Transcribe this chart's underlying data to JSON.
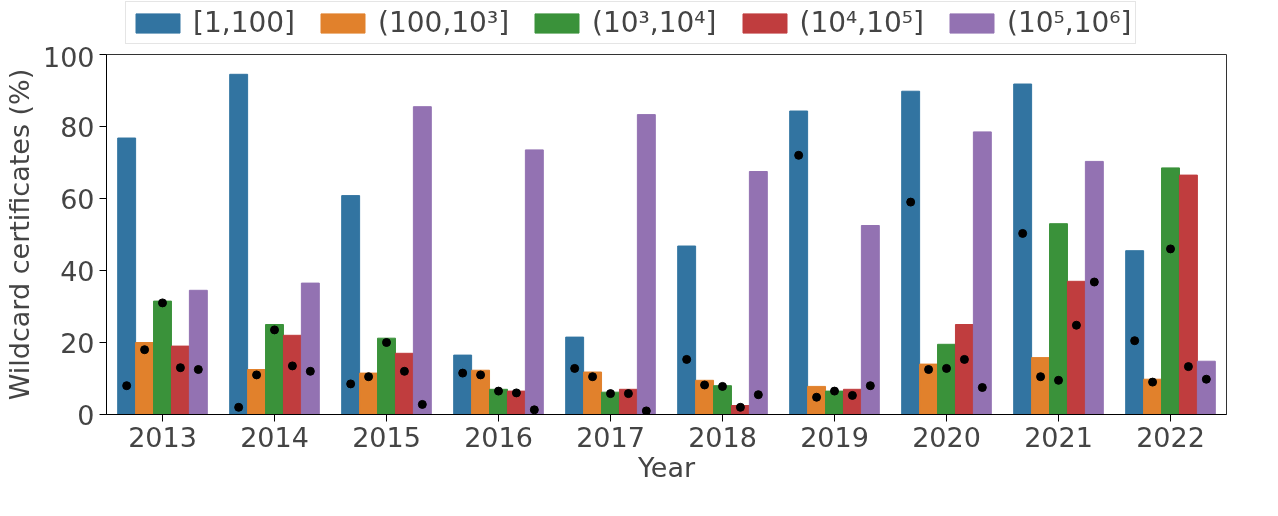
{
  "chart_data": {
    "type": "bar",
    "xlabel": "Year",
    "ylabel": "Wildcard certificates (%)",
    "categories": [
      "2013",
      "2014",
      "2015",
      "2016",
      "2017",
      "2018",
      "2019",
      "2020",
      "2021",
      "2022"
    ],
    "ylim": [
      0,
      100
    ],
    "yticks": [
      0,
      20,
      40,
      60,
      80,
      100
    ],
    "grid": false,
    "legend": "top",
    "series": [
      {
        "name": "[1,100]",
        "color": "#3274a1",
        "values": [
          76.8,
          94.5,
          60.8,
          16.5,
          21.5,
          46.8,
          84.3,
          89.8,
          91.8,
          45.5
        ]
      },
      {
        "name": "(100,10³]",
        "color": "#e1812c",
        "values": [
          20,
          12.5,
          11.5,
          12.3,
          11.8,
          9.5,
          7.8,
          14,
          15.8,
          9.8
        ]
      },
      {
        "name": "(10³,10⁴]",
        "color": "#3a923a",
        "values": [
          31.5,
          25,
          21.2,
          7,
          6.2,
          8,
          6.5,
          19.5,
          53,
          68.5
        ]
      },
      {
        "name": "(10⁴,10⁵]",
        "color": "#c03d3e",
        "values": [
          19,
          22,
          17,
          6.5,
          7,
          2.5,
          7,
          25,
          37,
          66.5
        ]
      },
      {
        "name": "(10⁵,10⁶]",
        "color": "#9372b2",
        "values": [
          34.5,
          36.5,
          85.5,
          73.5,
          83.3,
          67.5,
          52.5,
          78.5,
          70.3,
          14.8
        ]
      },
      {
        "type": "scatter",
        "marker": "circle",
        "color": "#000000",
        "values": [
          8,
          2,
          8.5,
          11.5,
          12.8,
          15.3,
          72,
          59,
          50.3,
          20.5
        ]
      },
      {
        "type": "scatter",
        "marker": "circle",
        "color": "#000000",
        "values": [
          18,
          11,
          10.5,
          11,
          10.5,
          8.2,
          4.8,
          12.5,
          10.5,
          9
        ]
      },
      {
        "type": "scatter",
        "marker": "circle",
        "color": "#000000",
        "values": [
          31,
          23.5,
          20,
          6.5,
          5.8,
          7.8,
          6.5,
          12.8,
          9.5,
          46
        ]
      },
      {
        "type": "scatter",
        "marker": "circle",
        "color": "#000000",
        "values": [
          13,
          13.5,
          12,
          6,
          5.8,
          2,
          5.3,
          15.3,
          24.8,
          13.3
        ]
      },
      {
        "type": "scatter",
        "marker": "circle",
        "color": "#000000",
        "values": [
          12.5,
          12,
          2.8,
          1.3,
          1,
          5.5,
          8,
          7.5,
          36.8,
          9.8
        ]
      }
    ]
  }
}
